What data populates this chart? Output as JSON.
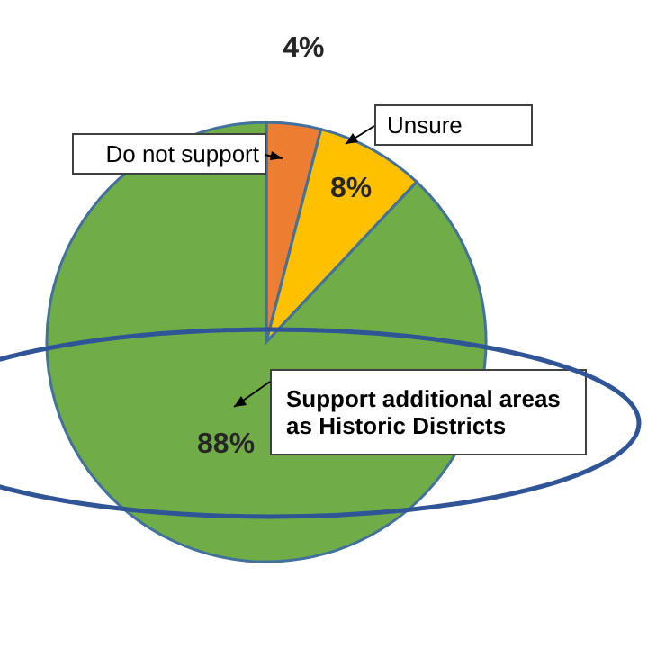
{
  "chart_data": {
    "type": "pie",
    "categories": [
      "Do not support",
      "Unsure",
      "Support additional areas as Historic Districts"
    ],
    "values": [
      4,
      8,
      88
    ],
    "colors": [
      "#ed7d31",
      "#ffc000",
      "#70ad47"
    ],
    "value_labels": [
      "4%",
      "8%",
      "88%"
    ]
  }
}
